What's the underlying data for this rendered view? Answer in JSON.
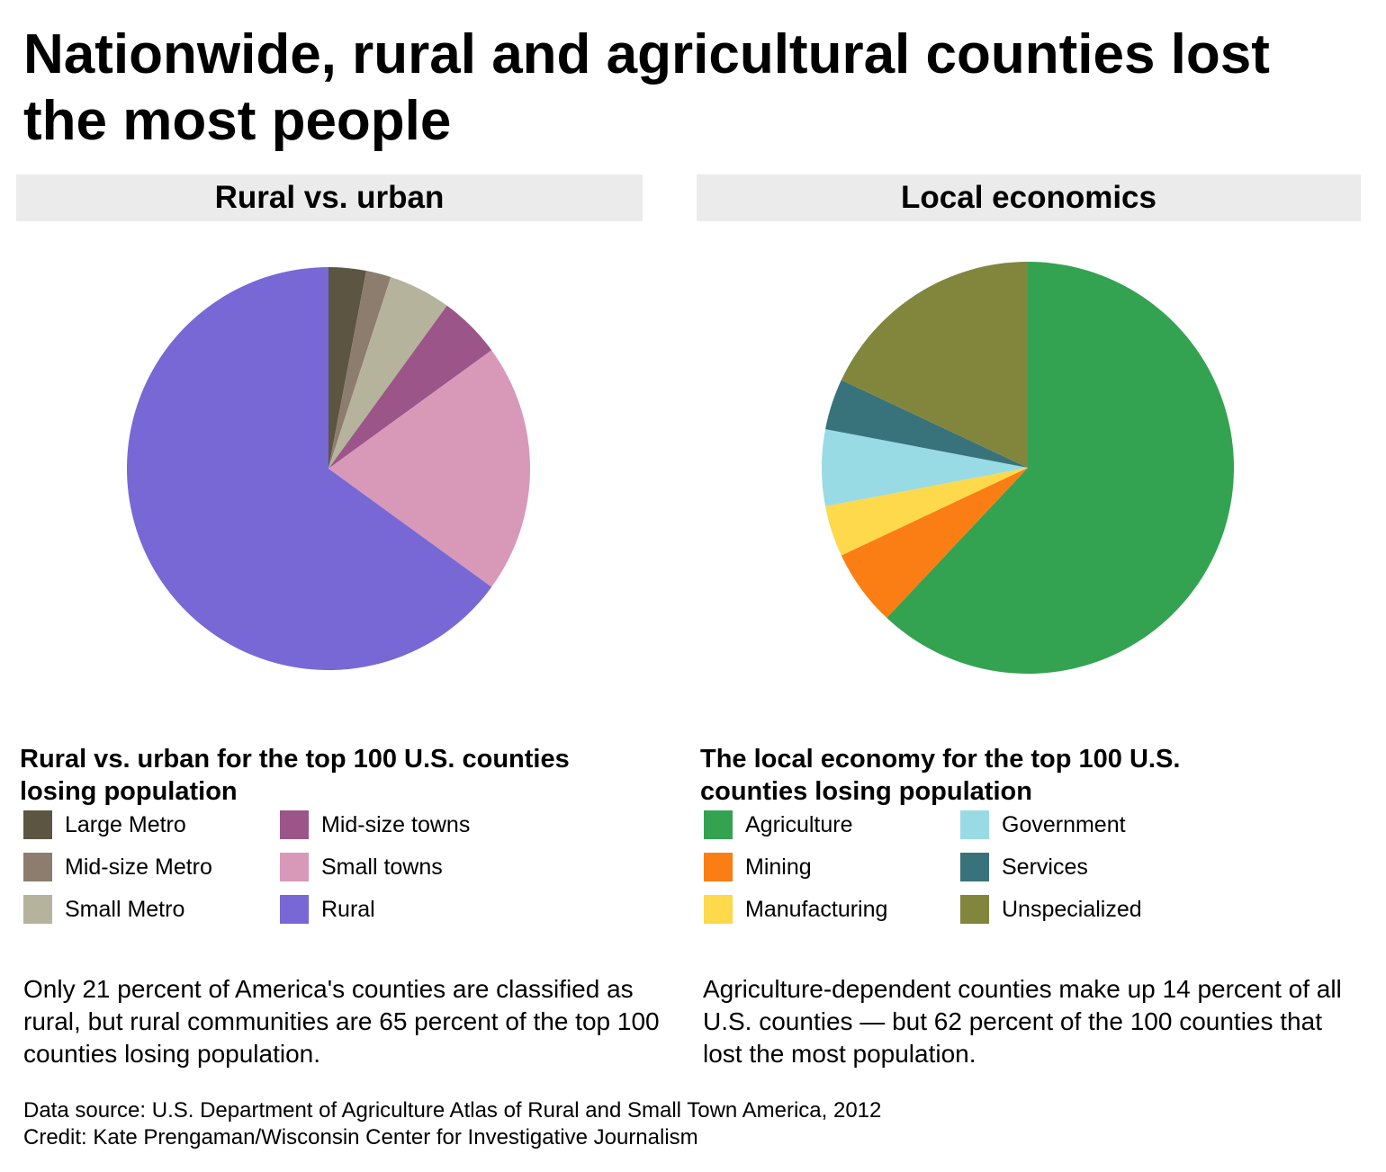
{
  "title": "Nationwide, rural and agricultural counties lost the most people",
  "footer": {
    "source": "Data source: U.S. Department of Agriculture Atlas of Rural and Small Town America, 2012",
    "credit": "Credit: Kate Prengaman/Wisconsin Center for Investigative Journalism"
  },
  "chart_data": [
    {
      "type": "pie",
      "panel_title": "Rural vs. urban",
      "legend_title": "Rural vs. urban for the top 100 U.S. counties losing population",
      "note": "Only 21 percent of America's counties are classified as rural, but rural communities are 65 percent of the top 100 counties losing population.",
      "start": "12 o'clock",
      "direction": "clockwise",
      "slices": [
        {
          "label": "Large Metro",
          "value": 3,
          "color": "#5c5542"
        },
        {
          "label": "Mid-size Metro",
          "value": 2,
          "color": "#8c7d6e"
        },
        {
          "label": "Small Metro",
          "value": 5,
          "color": "#b6b39d"
        },
        {
          "label": "Mid-size towns",
          "value": 5,
          "color": "#9b5588"
        },
        {
          "label": "Small towns",
          "value": 20,
          "color": "#d899b9"
        },
        {
          "label": "Rural",
          "value": 65,
          "color": "#7868d6"
        }
      ]
    },
    {
      "type": "pie",
      "panel_title": "Local economics",
      "legend_title": "The local economy for the top 100 U.S. counties losing population",
      "note": "Agriculture-dependent counties make up 14 percent of all U.S. counties — but 62 percent of the 100 counties that lost the most population.",
      "start": "12 o'clock",
      "direction": "clockwise",
      "slices": [
        {
          "label": "Agriculture",
          "value": 62,
          "color": "#33a352"
        },
        {
          "label": "Mining",
          "value": 6,
          "color": "#fb7e14"
        },
        {
          "label": "Manufacturing",
          "value": 4,
          "color": "#fdd94b"
        },
        {
          "label": "Government",
          "value": 6,
          "color": "#98dbe5"
        },
        {
          "label": "Services",
          "value": 4,
          "color": "#38737b"
        },
        {
          "label": "Unspecialized",
          "value": 18,
          "color": "#82863d"
        }
      ]
    }
  ]
}
